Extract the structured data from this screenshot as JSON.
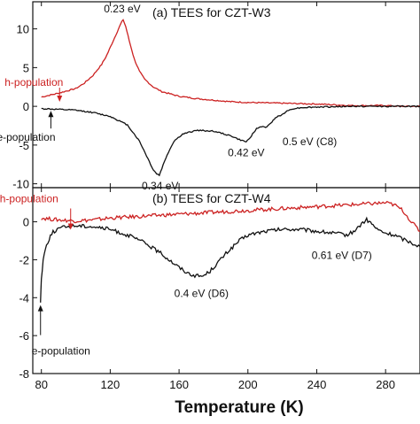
{
  "chart_data": [
    {
      "type": "line",
      "title": "(a) TEES for CZT-W3",
      "xlim": [
        75,
        300
      ],
      "ylim": [
        -10.5,
        13.5
      ],
      "yticks": [
        10,
        5,
        0,
        -5,
        -10
      ],
      "ytick_labels": [
        "10",
        "5",
        "0",
        "-5",
        "-10"
      ],
      "grid": false,
      "series": [
        {
          "name": "h-population",
          "color": "#cc2222",
          "x": [
            80,
            90,
            100,
            105,
            110,
            115,
            118,
            121,
            124,
            126,
            127.5,
            129,
            131,
            134,
            137,
            140,
            145,
            150,
            160,
            170,
            180,
            190,
            200,
            210,
            220,
            230,
            240,
            250,
            260,
            270,
            280,
            290,
            300
          ],
          "y": [
            1.2,
            1.7,
            2.3,
            3.0,
            4.0,
            5.4,
            6.6,
            8.1,
            9.6,
            10.6,
            11.2,
            10.3,
            8.5,
            6.1,
            4.5,
            3.5,
            2.5,
            1.9,
            1.3,
            1.0,
            0.8,
            0.6,
            0.5,
            0.45,
            0.4,
            0.35,
            0.3,
            0.2,
            0.1,
            0.1,
            0.1,
            0.0,
            0.0
          ]
        },
        {
          "name": "e-population",
          "color": "#111111",
          "x": [
            80,
            90,
            100,
            110,
            120,
            130,
            137,
            142,
            145,
            147,
            148.5,
            150,
            153,
            157,
            162,
            170,
            180,
            190,
            195,
            199,
            202,
            205,
            208,
            211,
            214,
            216,
            219,
            222,
            226,
            232,
            240,
            250,
            260,
            270,
            280,
            290,
            300
          ],
          "y": [
            -0.3,
            -0.4,
            -0.5,
            -0.8,
            -1.3,
            -2.4,
            -4.5,
            -6.8,
            -8.2,
            -8.7,
            -8.9,
            -8.0,
            -6.3,
            -4.5,
            -3.6,
            -3.1,
            -3.2,
            -3.8,
            -4.3,
            -4.6,
            -3.8,
            -2.9,
            -2.6,
            -2.7,
            -2.0,
            -1.4,
            -1.2,
            -0.7,
            -0.3,
            -0.15,
            -0.1,
            -0.05,
            0.0,
            0.0,
            0.0,
            0.0,
            0.0
          ]
        }
      ],
      "annotations": [
        {
          "text": "0.23 eV",
          "x": 127,
          "y": 11.2
        },
        {
          "text": "0.34 eV",
          "x": 149,
          "y": -8.9
        },
        {
          "text": "0.42 eV",
          "x": 199,
          "y": -4.6
        },
        {
          "text": "0.5 eV (C8)",
          "x": 215,
          "y": -2.7
        },
        {
          "text": "h-population",
          "x": 88,
          "y": 1.5
        },
        {
          "text": "e-population",
          "x": 85,
          "y": -0.35
        }
      ]
    },
    {
      "type": "line",
      "title": "(b) TEES for CZT-W4",
      "xlim": [
        75,
        300
      ],
      "ylim": [
        -8,
        1.8
      ],
      "yticks": [
        0,
        -2,
        -4,
        -6,
        -8
      ],
      "ytick_labels": [
        "0",
        "-2",
        "-4",
        "-6",
        "-8"
      ],
      "xticks": [
        80,
        120,
        160,
        200,
        240,
        280
      ],
      "xtick_labels": [
        "80",
        "120",
        "160",
        "200",
        "240",
        "280"
      ],
      "xlabel": "Temperature (K)",
      "grid": false,
      "series": [
        {
          "name": "h-population",
          "color": "#cc2222",
          "x": [
            80,
            90,
            100,
            110,
            120,
            130,
            140,
            150,
            160,
            170,
            180,
            190,
            200,
            210,
            220,
            230,
            240,
            250,
            260,
            270,
            280,
            285,
            290,
            295,
            300
          ],
          "y": [
            0.2,
            0.1,
            0.05,
            0.1,
            0.2,
            0.25,
            0.3,
            0.35,
            0.4,
            0.45,
            0.5,
            0.55,
            0.6,
            0.65,
            0.7,
            0.75,
            0.8,
            0.85,
            0.9,
            0.95,
            1.0,
            0.9,
            0.6,
            0.0,
            -0.5
          ]
        },
        {
          "name": "e-population",
          "color": "#111111",
          "x": [
            79.5,
            80,
            81,
            83,
            86,
            90,
            95,
            100,
            110,
            120,
            130,
            140,
            150,
            160,
            165,
            170,
            174,
            178,
            182,
            188,
            195,
            200,
            210,
            220,
            230,
            240,
            250,
            258,
            263,
            266,
            269,
            272,
            275,
            280,
            285,
            290,
            295,
            300
          ],
          "y": [
            -4.2,
            -3.0,
            -2.0,
            -1.2,
            -0.6,
            -0.35,
            -0.25,
            -0.2,
            -0.25,
            -0.4,
            -0.7,
            -1.1,
            -1.7,
            -2.4,
            -2.7,
            -2.85,
            -2.85,
            -2.6,
            -2.2,
            -1.6,
            -1.0,
            -0.7,
            -0.5,
            -0.4,
            -0.4,
            -0.5,
            -0.6,
            -0.7,
            -0.4,
            -0.1,
            0.1,
            -0.1,
            -0.4,
            -0.6,
            -0.7,
            -0.9,
            -1.1,
            -1.3
          ]
        }
      ],
      "annotations": [
        {
          "text": "h-population",
          "x": 97,
          "y": 0.05
        },
        {
          "text": "0.4 eV (D6)",
          "x": 173,
          "y": -2.85
        },
        {
          "text": "0.61 eV (D7)",
          "x": 269,
          "y": 0.1
        },
        {
          "text": "e-population",
          "x": 79.5,
          "y": -4.2
        }
      ]
    }
  ]
}
